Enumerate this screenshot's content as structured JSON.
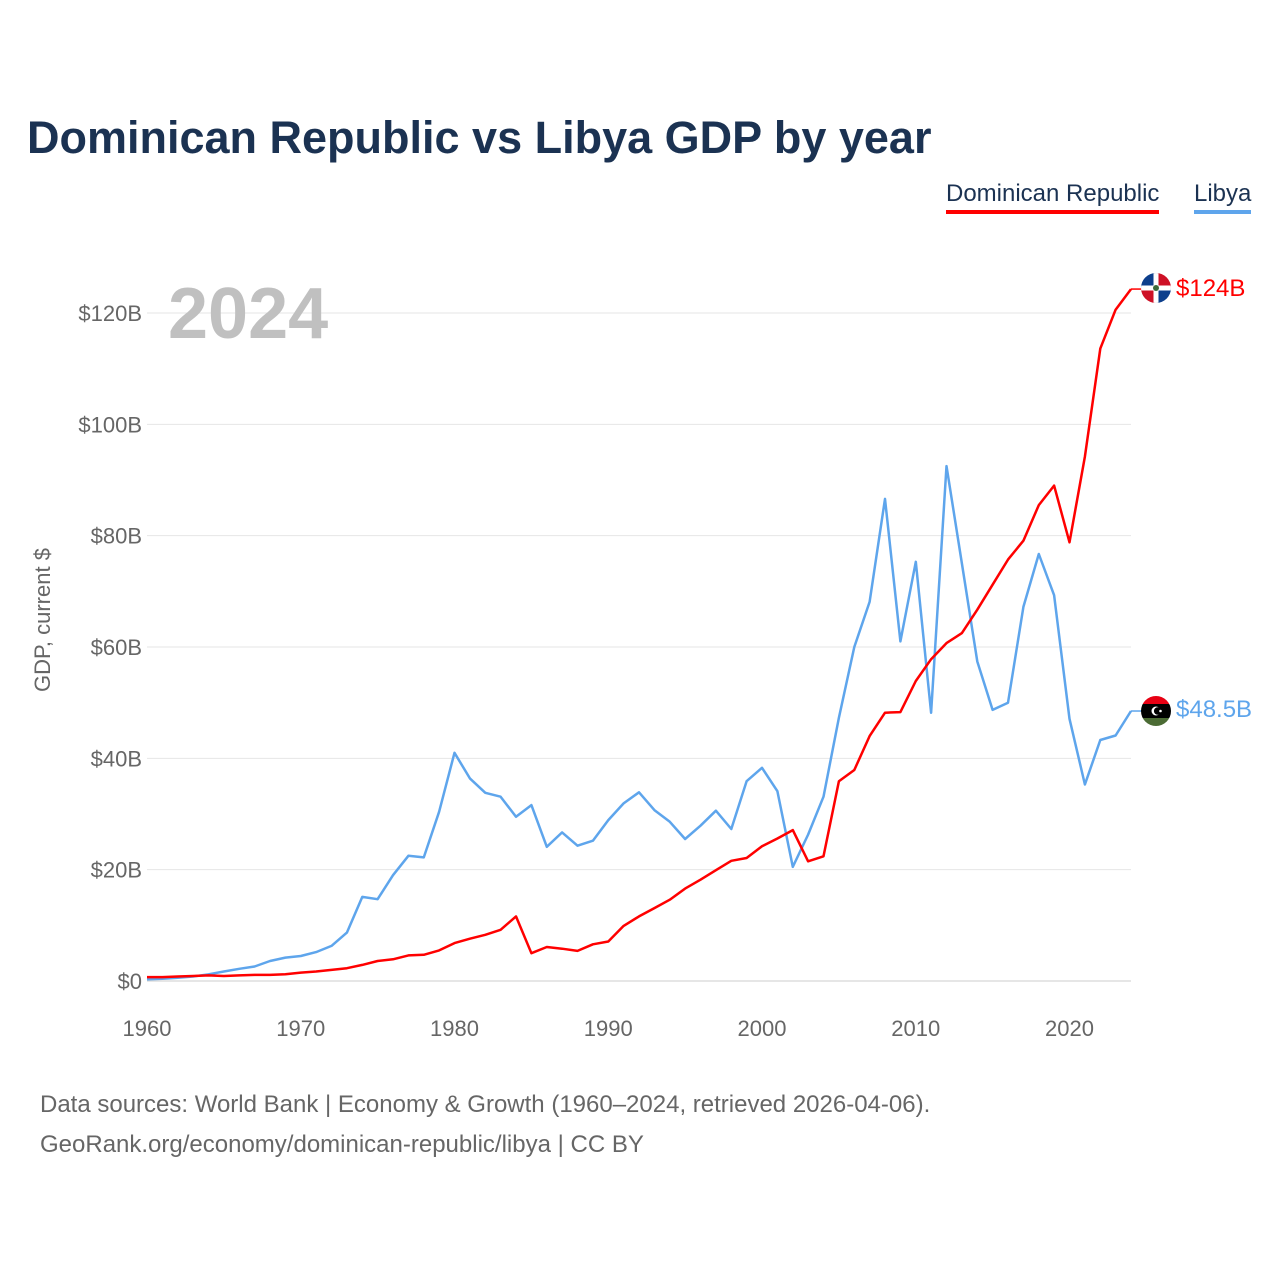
{
  "title": "Dominican Republic vs Libya GDP by year",
  "legend": [
    "Dominican Republic",
    "Libya"
  ],
  "year_label": "2024",
  "source_lines": [
    "Data sources: World Bank | Economy & Growth (1960–2024, retrieved 2026-04-06).",
    "GeoRank.org/economy/dominican-republic/libya | CC BY"
  ],
  "colors": {
    "dominican_republic": "#ff0000",
    "libya": "#5ea5ec",
    "title": "#1b3252"
  },
  "chart_data": {
    "type": "line",
    "title": "Dominican Republic vs Libya GDP by year",
    "xlabel": "",
    "ylabel": "GDP, current $",
    "xlim": [
      1960,
      2024
    ],
    "ylim": [
      0,
      128
    ],
    "x_ticks": [
      1960,
      1970,
      1980,
      1990,
      2000,
      2010,
      2020
    ],
    "y_ticks": [
      0,
      20,
      40,
      60,
      80,
      100,
      120
    ],
    "y_tick_labels": [
      "$0",
      "$20B",
      "$40B",
      "$60B",
      "$80B",
      "$100B",
      "$120B"
    ],
    "legend_position": "top-right",
    "grid": true,
    "x": [
      1960,
      1961,
      1962,
      1963,
      1964,
      1965,
      1966,
      1967,
      1968,
      1969,
      1970,
      1971,
      1972,
      1973,
      1974,
      1975,
      1976,
      1977,
      1978,
      1979,
      1980,
      1981,
      1982,
      1983,
      1984,
      1985,
      1986,
      1987,
      1988,
      1989,
      1990,
      1991,
      1992,
      1993,
      1994,
      1995,
      1996,
      1997,
      1998,
      1999,
      2000,
      2001,
      2002,
      2003,
      2004,
      2005,
      2006,
      2007,
      2008,
      2009,
      2010,
      2011,
      2012,
      2013,
      2014,
      2015,
      2016,
      2017,
      2018,
      2019,
      2020,
      2021,
      2022,
      2023,
      2024
    ],
    "series": [
      {
        "name": "Dominican Republic",
        "end_label": "$124B",
        "values": [
          0.7,
          0.7,
          0.8,
          0.9,
          1.0,
          0.9,
          1.0,
          1.1,
          1.1,
          1.2,
          1.5,
          1.7,
          2.0,
          2.3,
          2.9,
          3.6,
          3.9,
          4.6,
          4.7,
          5.5,
          6.8,
          7.6,
          8.3,
          9.2,
          11.6,
          5.0,
          6.1,
          5.8,
          5.4,
          6.6,
          7.1,
          9.9,
          11.6,
          13.1,
          14.6,
          16.6,
          18.2,
          19.9,
          21.6,
          22.1,
          24.2,
          25.6,
          27.1,
          21.5,
          22.4,
          35.9,
          37.9,
          44.0,
          48.2,
          48.3,
          53.9,
          57.8,
          60.7,
          62.5,
          66.7,
          71.2,
          75.7,
          79.1,
          85.5,
          89.0,
          78.8,
          94.2,
          113.6,
          120.6,
          124.3
        ]
      },
      {
        "name": "Libya",
        "end_label": "$48.5B",
        "values": [
          0.3,
          0.4,
          0.6,
          0.8,
          1.2,
          1.7,
          2.2,
          2.6,
          3.6,
          4.2,
          4.5,
          5.2,
          6.3,
          8.7,
          15.1,
          14.7,
          19.0,
          22.5,
          22.2,
          30.4,
          41.0,
          36.4,
          33.8,
          33.1,
          29.5,
          31.6,
          24.1,
          26.7,
          24.3,
          25.2,
          28.9,
          31.9,
          33.9,
          30.7,
          28.6,
          25.5,
          27.9,
          30.6,
          27.3,
          35.9,
          38.3,
          34.1,
          20.5,
          26.3,
          33.1,
          47.3,
          60.0,
          68.1,
          86.6,
          61.0,
          75.3,
          48.2,
          92.5,
          75.0,
          57.4,
          48.7,
          50.0,
          67.2,
          76.7,
          69.3,
          47.1,
          35.3,
          43.3,
          44.1,
          48.5
        ]
      }
    ]
  }
}
